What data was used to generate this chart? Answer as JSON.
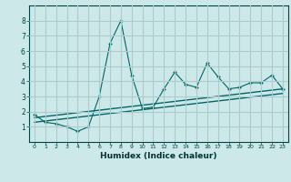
{
  "title": "",
  "xlabel": "Humidex (Indice chaleur)",
  "ylabel": "",
  "background_color": "#cce8e8",
  "grid_color": "#aacccc",
  "line_color": "#006666",
  "xlim": [
    -0.5,
    23.5
  ],
  "ylim": [
    0,
    9
  ],
  "xticks": [
    0,
    1,
    2,
    3,
    4,
    5,
    6,
    7,
    8,
    9,
    10,
    11,
    12,
    13,
    14,
    15,
    16,
    17,
    18,
    19,
    20,
    21,
    22,
    23
  ],
  "yticks": [
    1,
    2,
    3,
    4,
    5,
    6,
    7,
    8
  ],
  "scatter_x": [
    0,
    1,
    2,
    3,
    4,
    5,
    6,
    7,
    8,
    9,
    10,
    11,
    12,
    13,
    14,
    15,
    16,
    17,
    18,
    19,
    20,
    21,
    22,
    23
  ],
  "scatter_y": [
    1.8,
    1.3,
    1.2,
    1.0,
    0.7,
    1.0,
    3.0,
    6.5,
    8.0,
    4.4,
    2.2,
    2.3,
    3.5,
    4.6,
    3.8,
    3.6,
    5.2,
    4.3,
    3.5,
    3.6,
    3.9,
    3.9,
    4.4,
    3.5
  ],
  "line1_x": [
    0,
    23
  ],
  "line1_y": [
    1.6,
    3.5
  ],
  "line2_x": [
    0,
    23
  ],
  "line2_y": [
    1.3,
    3.2
  ]
}
